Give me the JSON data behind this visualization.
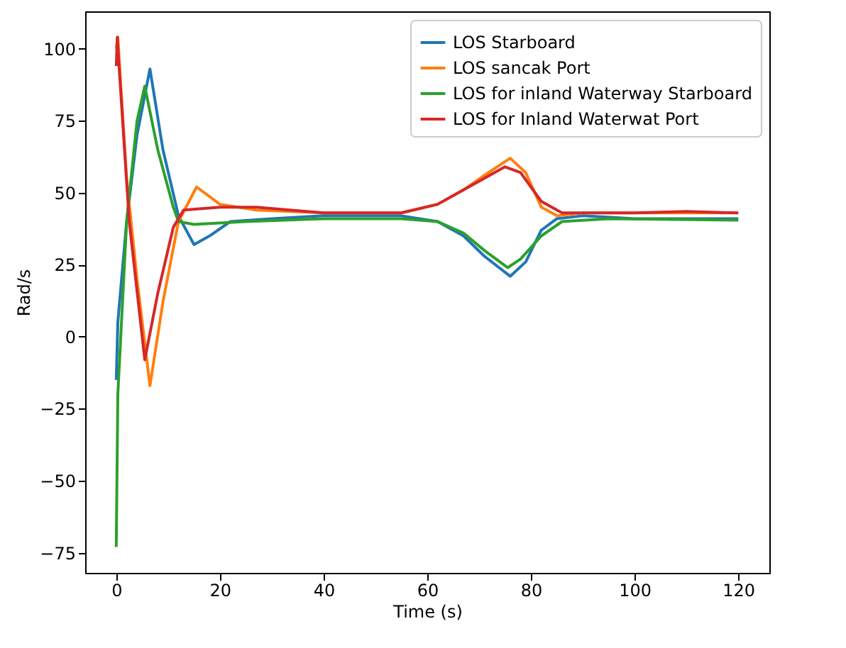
{
  "chart_data": {
    "type": "line",
    "xlabel": "Time (s)",
    "ylabel": "Rad/s",
    "xlim": [
      -6,
      126
    ],
    "ylim": [
      -82,
      113
    ],
    "xticks": [
      0,
      20,
      40,
      60,
      80,
      100,
      120
    ],
    "yticks": [
      -75,
      -50,
      -25,
      0,
      25,
      50,
      75,
      100
    ],
    "grid": false,
    "legend": "top right",
    "series": [
      {
        "name": "LOS Starboard",
        "color": "#1f77b4",
        "x": [
          0,
          0.3,
          2,
          4,
          6.5,
          9,
          12,
          15,
          18,
          22,
          30,
          40,
          55,
          62,
          67,
          71,
          76,
          79,
          82,
          85,
          90,
          100,
          120
        ],
        "values": [
          -15,
          5,
          40,
          70,
          93,
          65,
          42,
          32,
          35,
          40,
          41,
          42,
          42,
          40,
          35,
          28,
          21,
          26,
          37,
          41,
          42,
          41,
          41
        ]
      },
      {
        "name": "LOS sancak Port",
        "color": "#ff7f0e",
        "x": [
          0,
          0.3,
          2,
          4,
          6.5,
          9,
          12,
          15.5,
          20,
          27,
          40,
          55,
          62,
          67,
          71,
          76,
          79,
          82,
          85,
          90,
          100,
          120
        ],
        "values": [
          100,
          104,
          55,
          20,
          -17,
          12,
          40,
          52,
          46,
          44,
          43,
          43,
          46,
          51,
          56,
          62,
          57,
          45,
          42,
          43,
          43,
          43
        ]
      },
      {
        "name": "LOS for inland Waterway Starboard",
        "color": "#2ca02c",
        "x": [
          0,
          0.3,
          2,
          4,
          5.5,
          8,
          11,
          12,
          15,
          25,
          40,
          55,
          62,
          67,
          71,
          75.5,
          78,
          82,
          86,
          95,
          120
        ],
        "values": [
          -73,
          -20,
          40,
          75,
          87,
          65,
          45,
          40,
          39,
          40,
          41,
          41,
          40,
          36,
          30,
          24,
          27,
          35,
          40,
          41,
          40.5
        ]
      },
      {
        "name": " LOS for Inland Waterwat Port",
        "color": "#d62728",
        "x": [
          0,
          0.2,
          0.5,
          2.5,
          5.5,
          8,
          11,
          13,
          20,
          27,
          40,
          55,
          62,
          67,
          71,
          75,
          78,
          82,
          86,
          100,
          110,
          120
        ],
        "values": [
          94,
          104,
          95,
          40,
          -8,
          15,
          38,
          44,
          45,
          45,
          43,
          43,
          46,
          51,
          55,
          59,
          57,
          47,
          43,
          43,
          43.5,
          43
        ]
      }
    ]
  }
}
